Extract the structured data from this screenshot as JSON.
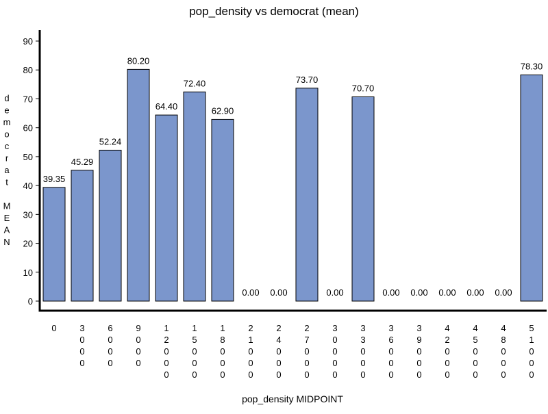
{
  "chart_data": {
    "type": "bar",
    "title": "pop_density vs democrat (mean)",
    "xlabel": "pop_density MIDPOINT",
    "ylabel": "democrat MEAN",
    "ylabel_lines": [
      "d",
      "e",
      "m",
      "o",
      "c",
      "r",
      "a",
      "t",
      "",
      "M",
      "E",
      "A",
      "N"
    ],
    "categories": [
      "0",
      "3000",
      "6000",
      "9000",
      "12000",
      "15000",
      "18000",
      "21000",
      "24000",
      "27000",
      "30000",
      "33000",
      "36000",
      "39000",
      "42000",
      "45000",
      "48000",
      "51000"
    ],
    "values": [
      39.35,
      45.29,
      52.24,
      80.2,
      64.4,
      72.4,
      62.9,
      0,
      0,
      73.7,
      0,
      70.7,
      0,
      0,
      0,
      0,
      0,
      78.3
    ],
    "value_labels": [
      "39.35",
      "45.29",
      "52.24",
      "80.20",
      "64.40",
      "72.40",
      "62.90",
      "0.00",
      "0.00",
      "73.70",
      "0.00",
      "70.70",
      "0.00",
      "0.00",
      "0.00",
      "0.00",
      "0.00",
      "78.30"
    ],
    "ylim": [
      0,
      90
    ],
    "yticks": [
      0,
      10,
      20,
      30,
      40,
      50,
      60,
      70,
      80,
      90
    ],
    "grid": false,
    "bar_color": "#7b96cc",
    "bar_edge_color": "#000000"
  }
}
